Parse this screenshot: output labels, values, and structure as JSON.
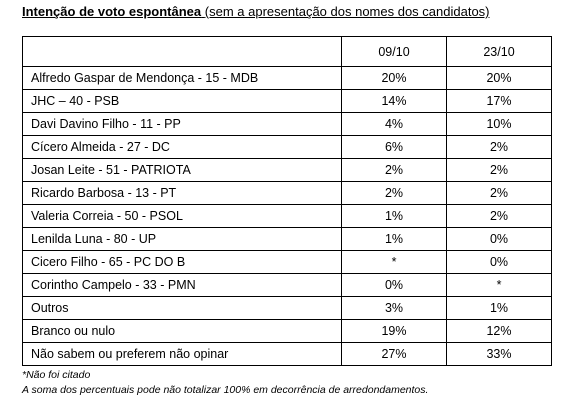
{
  "header": {
    "title": "Intenção de voto espontânea",
    "subtitle": "(sem a apresentação dos nomes dos candidatos)"
  },
  "table": {
    "columns": [
      "09/10",
      "23/10"
    ],
    "rows": [
      [
        "Alfredo Gaspar de Mendonça - 15 - MDB",
        "20%",
        "20%"
      ],
      [
        "JHC – 40 - PSB",
        "14%",
        "17%"
      ],
      [
        "Davi Davino Filho - 11 - PP",
        "4%",
        "10%"
      ],
      [
        "Cícero Almeida - 27 - DC",
        "6%",
        "2%"
      ],
      [
        "Josan Leite - 51 - PATRIOTA",
        "2%",
        "2%"
      ],
      [
        "Ricardo Barbosa - 13 - PT",
        "2%",
        "2%"
      ],
      [
        "Valeria Correia - 50 - PSOL",
        "1%",
        "2%"
      ],
      [
        "Lenilda Luna - 80 - UP",
        "1%",
        "0%"
      ],
      [
        "Cicero Filho - 65 - PC DO B",
        "*",
        "0%"
      ],
      [
        "Corintho Campelo - 33 - PMN",
        "0%",
        "*"
      ],
      [
        "Outros",
        "3%",
        "1%"
      ],
      [
        "Branco ou nulo",
        "19%",
        "12%"
      ],
      [
        "Não sabem ou preferem não opinar",
        "27%",
        "33%"
      ]
    ]
  },
  "footnotes": [
    "*Não foi citado",
    "A soma dos percentuais pode não totalizar 100% em decorrência de arredondamentos."
  ]
}
